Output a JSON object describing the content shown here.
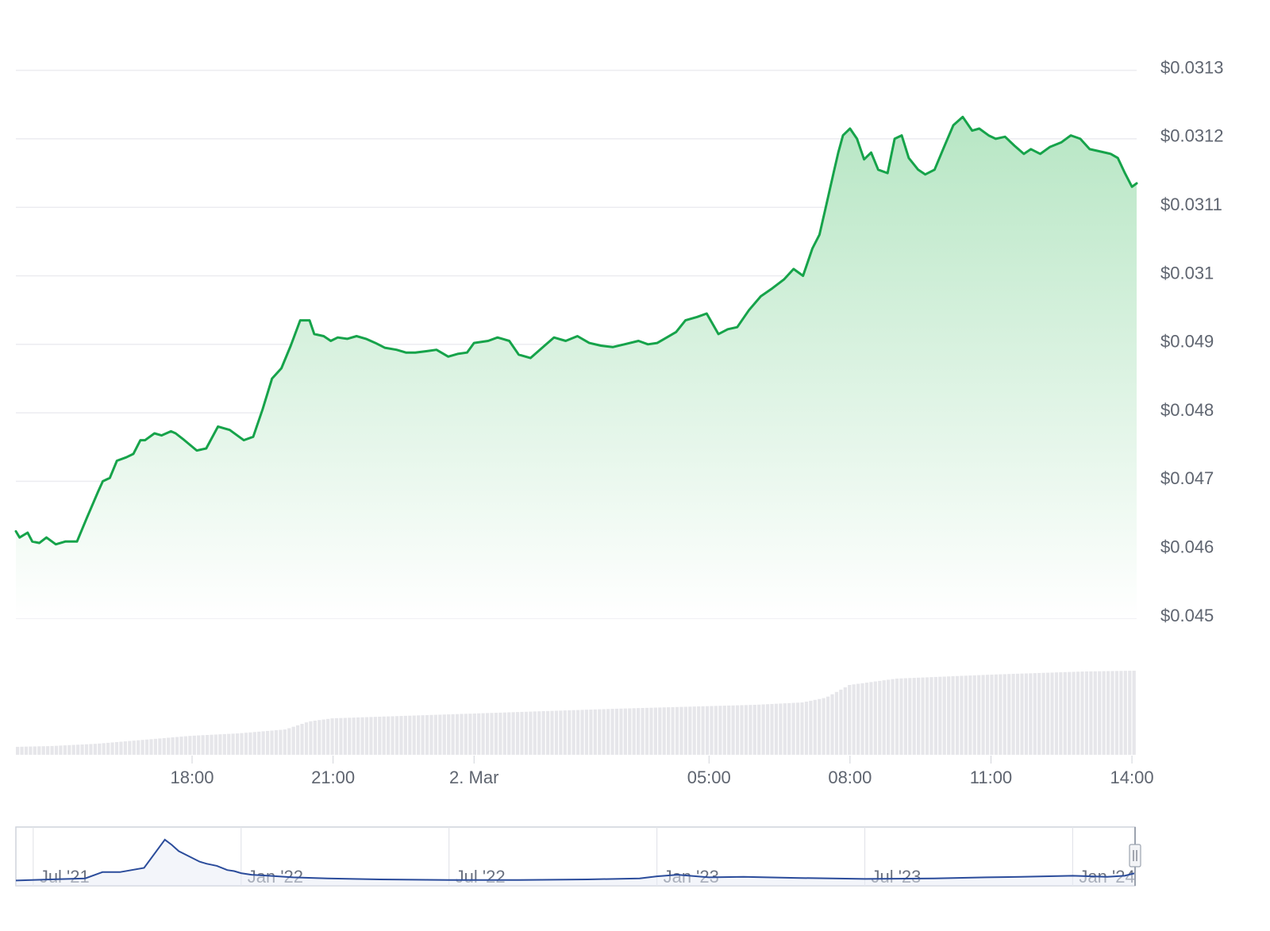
{
  "chart_data": {
    "type": "area",
    "title": "",
    "xlabel": "",
    "ylabel": "",
    "y_tick_labels": [
      "$0.0313",
      "$0.0312",
      "$0.0311",
      "$0.031",
      "$0.049",
      "$0.048",
      "$0.047",
      "$0.046",
      "$0.045"
    ],
    "x_tick_labels": [
      "18:00",
      "21:00",
      "2. Mar",
      "05:00",
      "08:00",
      "11:00",
      "14:00"
    ],
    "x_tick_hours": [
      18,
      21,
      24,
      29,
      32,
      35,
      38
    ],
    "x_range_hours": [
      14.25,
      38.1
    ],
    "y_tick_values": [
      8,
      7,
      6,
      5,
      4,
      3,
      2,
      1,
      0
    ],
    "y_range": [
      0,
      8.1
    ],
    "grid": true,
    "legend": "none",
    "price_series": {
      "name": "",
      "color": "#16a34a",
      "fill_color": "#c5ecd0",
      "x_hours": [
        14.25,
        14.33,
        14.5,
        14.6,
        14.75,
        14.9,
        15.1,
        15.3,
        15.55,
        15.75,
        16.0,
        16.1,
        16.25,
        16.4,
        16.6,
        16.75,
        16.9,
        17.0,
        17.2,
        17.35,
        17.55,
        17.65,
        17.8,
        18.1,
        18.3,
        18.55,
        18.8,
        19.1,
        19.3,
        19.5,
        19.7,
        19.9,
        20.1,
        20.3,
        20.5,
        20.6,
        20.8,
        20.95,
        21.1,
        21.3,
        21.5,
        21.7,
        21.9,
        22.1,
        22.35,
        22.55,
        22.75,
        23.0,
        23.2,
        23.45,
        23.65,
        23.85,
        24.0,
        24.3,
        24.5,
        24.75,
        24.95,
        25.2,
        25.45,
        25.7,
        25.95,
        26.2,
        26.45,
        26.7,
        26.95,
        27.2,
        27.5,
        27.7,
        27.9,
        28.1,
        28.3,
        28.5,
        28.75,
        28.95,
        29.2,
        29.4,
        29.6,
        29.85,
        30.1,
        30.35,
        30.6,
        30.8,
        31.0,
        31.2,
        31.35,
        31.5,
        31.65,
        31.75,
        31.85,
        32.0,
        32.15,
        32.3,
        32.45,
        32.6,
        32.8,
        32.95,
        33.1,
        33.25,
        33.45,
        33.6,
        33.8,
        34.0,
        34.2,
        34.4,
        34.6,
        34.75,
        34.95,
        35.1,
        35.3,
        35.5,
        35.7,
        35.85,
        36.05,
        36.25,
        36.5,
        36.7,
        36.9,
        37.1,
        37.3,
        37.55,
        37.7,
        37.85,
        38.0,
        38.1
      ],
      "y_values": [
        1.27,
        1.18,
        1.25,
        1.12,
        1.1,
        1.18,
        1.08,
        1.12,
        1.12,
        1.45,
        1.85,
        2.0,
        2.05,
        2.3,
        2.35,
        2.4,
        2.6,
        2.6,
        2.7,
        2.67,
        2.73,
        2.7,
        2.62,
        2.45,
        2.48,
        2.8,
        2.75,
        2.6,
        2.65,
        3.05,
        3.5,
        3.65,
        3.98,
        4.35,
        4.35,
        4.15,
        4.12,
        4.05,
        4.1,
        4.08,
        4.12,
        4.08,
        4.02,
        3.95,
        3.92,
        3.88,
        3.88,
        3.9,
        3.92,
        3.82,
        3.86,
        3.88,
        4.02,
        4.05,
        4.1,
        4.05,
        3.85,
        3.8,
        3.95,
        4.1,
        4.05,
        4.12,
        4.02,
        3.98,
        3.96,
        4.0,
        4.05,
        4.0,
        4.02,
        4.1,
        4.18,
        4.35,
        4.4,
        4.45,
        4.15,
        4.22,
        4.25,
        4.5,
        4.7,
        4.82,
        4.95,
        5.1,
        5.0,
        5.4,
        5.6,
        6.05,
        6.5,
        6.8,
        7.05,
        7.15,
        7.0,
        6.7,
        6.8,
        6.55,
        6.5,
        7.0,
        7.05,
        6.72,
        6.55,
        6.48,
        6.55,
        6.88,
        7.2,
        7.32,
        7.12,
        7.15,
        7.05,
        7.0,
        7.03,
        6.9,
        6.78,
        6.85,
        6.78,
        6.88,
        6.95,
        7.05,
        7.0,
        6.85,
        6.82,
        6.78,
        6.72,
        6.5,
        6.3,
        6.35
      ]
    },
    "volume_series": {
      "name": "",
      "color": "#e6e6ea",
      "bar_count": 260,
      "profile_x_hours": [
        14.25,
        15.0,
        16.0,
        17.0,
        18.0,
        19.0,
        20.0,
        20.5,
        21.0,
        22.0,
        24.0,
        27.0,
        30.0,
        31.0,
        31.5,
        32.0,
        33.0,
        35.0,
        37.0,
        38.1
      ],
      "profile_values": [
        10,
        11,
        14,
        19,
        24,
        27,
        32,
        42,
        46,
        48,
        52,
        58,
        63,
        66,
        72,
        88,
        96,
        101,
        105,
        106
      ]
    },
    "navigator": {
      "tick_labels": [
        "Jul '21",
        "Jan '22",
        "Jul '22",
        "Jan '23",
        "Jul '23",
        "Jan '24"
      ],
      "tick_positions": [
        0,
        6,
        12,
        18,
        24,
        30
      ],
      "x_range": [
        -0.5,
        31.8
      ],
      "y_range": [
        0,
        1
      ],
      "line_color": "#2b4c9b",
      "fill_color": "#e8ecf6",
      "x_values": [
        -0.5,
        0.5,
        1.5,
        2.0,
        2.5,
        3.2,
        3.8,
        4.0,
        4.2,
        4.5,
        4.8,
        5.0,
        5.3,
        5.6,
        5.8,
        6.0,
        6.3,
        6.8,
        7.5,
        8.5,
        10.0,
        12.0,
        14.0,
        16.0,
        17.5,
        18.0,
        18.6,
        19.5,
        20.5,
        22.0,
        24.0,
        26.0,
        27.5,
        28.5,
        30.0,
        31.0,
        31.5,
        31.8
      ],
      "y_values": [
        0.04,
        0.06,
        0.08,
        0.2,
        0.2,
        0.28,
        0.82,
        0.72,
        0.6,
        0.5,
        0.4,
        0.36,
        0.32,
        0.24,
        0.22,
        0.18,
        0.15,
        0.13,
        0.1,
        0.08,
        0.06,
        0.05,
        0.05,
        0.06,
        0.08,
        0.12,
        0.15,
        0.1,
        0.11,
        0.09,
        0.07,
        0.08,
        0.1,
        0.11,
        0.13,
        0.11,
        0.13,
        0.18
      ]
    }
  }
}
